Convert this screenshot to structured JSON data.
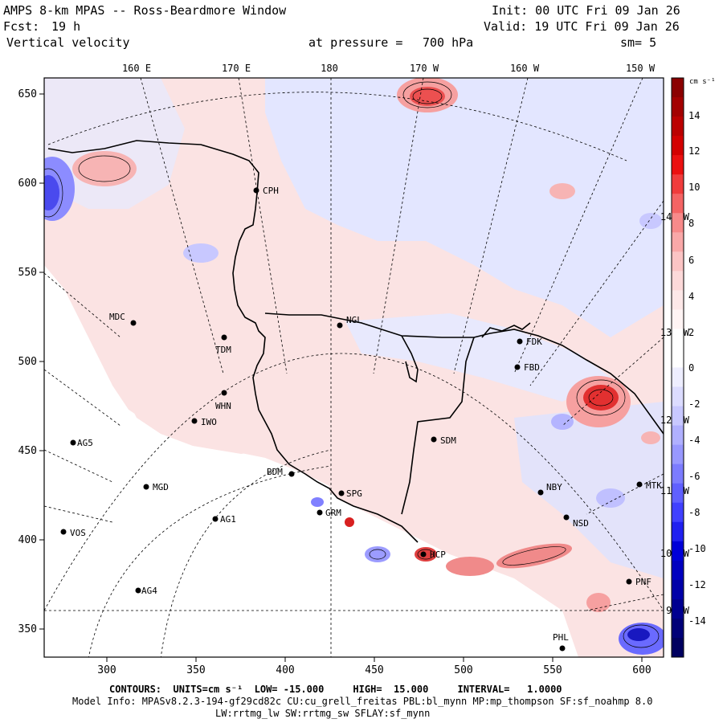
{
  "header": {
    "title": "AMPS 8-km MPAS -- Ross-Beardmore Window",
    "fcst_label": "Fcst:",
    "fcst_value": "19 h",
    "variable": "Vertical velocity",
    "init": "Init: 00 UTC Fri 09 Jan 26",
    "valid": "Valid: 19 UTC Fri 09 Jan 26",
    "pressure_label": "at pressure =",
    "pressure_value": "700 hPa",
    "smoothing": "sm= 5"
  },
  "axes": {
    "top_lon_labels": [
      "160 E",
      "170 E",
      "180",
      "170 W",
      "160 W",
      "150 W"
    ],
    "right_lon_labels": [
      "140 W",
      "130 W",
      "120 W",
      "110 W",
      "100 W",
      "90 W"
    ],
    "y_ticks": [
      "650",
      "600",
      "550",
      "500",
      "450",
      "400",
      "350"
    ],
    "x_ticks": [
      "300",
      "350",
      "400",
      "450",
      "500",
      "550",
      "600"
    ]
  },
  "colorbar": {
    "units": "cm s⁻¹",
    "labels": [
      "14",
      "12",
      "10",
      "8",
      "6",
      "4",
      "2",
      "0",
      "-2",
      "-4",
      "-6",
      "-8",
      "-10",
      "-12",
      "-14"
    ],
    "colors": [
      "#8b0000",
      "#a30000",
      "#bb0000",
      "#d30000",
      "#eb1010",
      "#f03c3c",
      "#f46464",
      "#f78a8a",
      "#f9a8a8",
      "#fbc4c4",
      "#fcd9d9",
      "#fde8e8",
      "#fff4f4",
      "#ffffff",
      "#ffffff",
      "#eeeeff",
      "#dcdcff",
      "#c8c8ff",
      "#b0b0ff",
      "#9898ff",
      "#7c7cff",
      "#6060ff",
      "#4040ff",
      "#2020f0",
      "#0000d8",
      "#0000c0",
      "#0000a8",
      "#000090",
      "#000078",
      "#000060"
    ]
  },
  "stations": [
    {
      "name": "CPH"
    },
    {
      "name": "NGL"
    },
    {
      "name": "MDC"
    },
    {
      "name": "TDM"
    },
    {
      "name": "WHN"
    },
    {
      "name": "IWO"
    },
    {
      "name": "AG5"
    },
    {
      "name": "MGD"
    },
    {
      "name": "AG1"
    },
    {
      "name": "VOS"
    },
    {
      "name": "AG4"
    },
    {
      "name": "BDM"
    },
    {
      "name": "SPG"
    },
    {
      "name": "GRM"
    },
    {
      "name": "SDM"
    },
    {
      "name": "FDK"
    },
    {
      "name": "FBD"
    },
    {
      "name": "NBY"
    },
    {
      "name": "MTK"
    },
    {
      "name": "HCP"
    },
    {
      "name": "NSD"
    },
    {
      "name": "PNF"
    },
    {
      "name": "PHL"
    }
  ],
  "footer": {
    "contours_line": "CONTOURS:  UNITS=cm s⁻¹  LOW= -15.000     HIGH=  15.000     INTERVAL=   1.0000",
    "model_line": "Model Info: MPASv8.2.3-194-gf29cd82c CU:cu_grell_freitas PBL:bl_mynn MP:mp_thompson SF:sf_noahmp 8.0",
    "physics_line": "LW:rrtmg_lw SW:rrtmg_sw SFLAY:sf_mynn"
  }
}
